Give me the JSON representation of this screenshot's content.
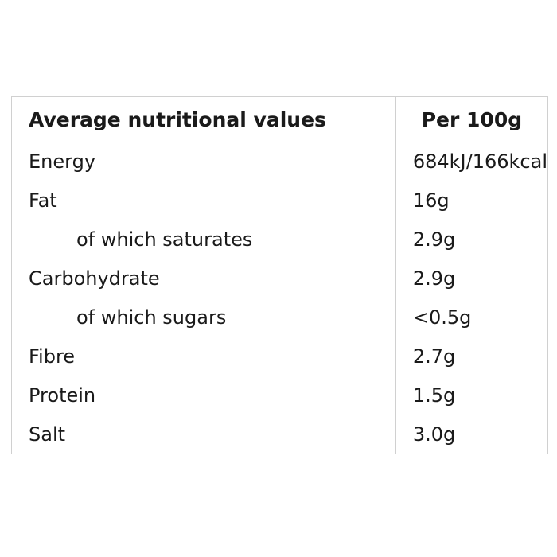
{
  "header": {
    "label": "Average nutritional values",
    "per": "Per 100g"
  },
  "rows": [
    {
      "label": "Energy",
      "value": "684kJ/166kcal",
      "indent": false
    },
    {
      "label": "Fat",
      "value": "16g",
      "indent": false
    },
    {
      "label": "of which saturates",
      "value": "2.9g",
      "indent": true
    },
    {
      "label": "Carbohydrate",
      "value": "2.9g",
      "indent": false
    },
    {
      "label": "of which sugars",
      "value": "<0.5g",
      "indent": true
    },
    {
      "label": "Fibre",
      "value": "2.7g",
      "indent": false
    },
    {
      "label": "Protein",
      "value": "1.5g",
      "indent": false
    },
    {
      "label": "Salt",
      "value": "3.0g",
      "indent": false
    }
  ]
}
